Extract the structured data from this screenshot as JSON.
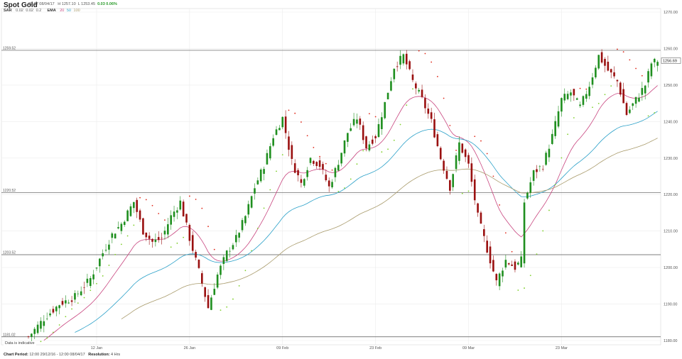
{
  "header": {
    "instrument": "Spot Gold",
    "time": "08:37 08/04/17",
    "high": "H 1257.10",
    "low": "L 1253.45",
    "change": "0.03 0.06%"
  },
  "indicators": [
    {
      "name": "SAR",
      "params": [
        "0.02",
        "0.02",
        "0.2"
      ],
      "colors": [
        "#e0291a",
        "#7fcf2a"
      ]
    },
    {
      "name": "EMA",
      "params": [
        "20",
        "50",
        "100"
      ],
      "colors": [
        "#c8457f",
        "#2aa0c8",
        "#a89a6a"
      ]
    }
  ],
  "colors": {
    "up": "#1f8f1f",
    "down": "#9a1010",
    "sar_up": "#7fcf2a",
    "sar_down": "#e0291a",
    "ema20": "#c8457f",
    "ema50": "#2aa0c8",
    "ema100": "#a89a6a",
    "grid": "#ececec",
    "hline": "#555555"
  },
  "chart_data": {
    "type": "candlestick",
    "ylim": [
      1180,
      1270
    ],
    "y_ticks": [
      "1270.00",
      "1260.00",
      "1250.00",
      "1240.00",
      "1230.00",
      "1220.00",
      "1210.00",
      "1200.00",
      "1190.00",
      "1180.00"
    ],
    "x_ticks": [
      {
        "label": "12 Jan",
        "index": 22
      },
      {
        "label": "26 Jan",
        "index": 52
      },
      {
        "label": "09 Feb",
        "index": 82
      },
      {
        "label": "23 Feb",
        "index": 112
      },
      {
        "label": "09 Mar",
        "index": 142
      },
      {
        "label": "23 Mar",
        "index": 172
      }
    ],
    "horizontal_lines": [
      {
        "label": "1259.52",
        "value": 1259.52
      },
      {
        "label": "1220.52",
        "value": 1220.52
      },
      {
        "label": "1203.52",
        "value": 1203.52
      },
      {
        "label": "1181.02",
        "value": 1181.02
      }
    ],
    "last_price": "1256.69",
    "close_path": [
      [
        0,
        1181
      ],
      [
        5,
        1186
      ],
      [
        10,
        1190
      ],
      [
        15,
        1192
      ],
      [
        20,
        1197
      ],
      [
        24,
        1204
      ],
      [
        27,
        1209
      ],
      [
        30,
        1212
      ],
      [
        34,
        1218
      ],
      [
        37,
        1210
      ],
      [
        40,
        1207
      ],
      [
        43,
        1208
      ],
      [
        46,
        1214
      ],
      [
        49,
        1218
      ],
      [
        52,
        1208
      ],
      [
        55,
        1199
      ],
      [
        58,
        1189
      ],
      [
        61,
        1198
      ],
      [
        64,
        1204
      ],
      [
        67,
        1208
      ],
      [
        70,
        1214
      ],
      [
        73,
        1222
      ],
      [
        76,
        1228
      ],
      [
        79,
        1236
      ],
      [
        82,
        1241
      ],
      [
        85,
        1229
      ],
      [
        88,
        1223
      ],
      [
        91,
        1230
      ],
      [
        94,
        1228
      ],
      [
        97,
        1222
      ],
      [
        100,
        1229
      ],
      [
        103,
        1237
      ],
      [
        106,
        1241
      ],
      [
        109,
        1233
      ],
      [
        112,
        1236
      ],
      [
        115,
        1245
      ],
      [
        118,
        1255
      ],
      [
        121,
        1258
      ],
      [
        124,
        1251
      ],
      [
        127,
        1246
      ],
      [
        130,
        1240
      ],
      [
        133,
        1230
      ],
      [
        136,
        1222
      ],
      [
        139,
        1234
      ],
      [
        142,
        1228
      ],
      [
        145,
        1214
      ],
      [
        148,
        1205
      ],
      [
        151,
        1196
      ],
      [
        154,
        1202
      ],
      [
        157,
        1200
      ],
      [
        159,
        1202
      ],
      [
        160,
        1218
      ],
      [
        163,
        1226
      ],
      [
        166,
        1228
      ],
      [
        169,
        1236
      ],
      [
        172,
        1246
      ],
      [
        175,
        1248
      ],
      [
        178,
        1244
      ],
      [
        181,
        1250
      ],
      [
        184,
        1258
      ],
      [
        187,
        1254
      ],
      [
        190,
        1251
      ],
      [
        193,
        1242
      ],
      [
        196,
        1246
      ],
      [
        199,
        1250
      ],
      [
        201,
        1256
      ],
      [
        203,
        1256.69
      ]
    ],
    "bar_count": 204
  },
  "footer": {
    "chart_period_label": "Chart Period:",
    "chart_period": "12:00 29/12/16 - 12:00 08/04/17",
    "resolution_label": "Resolution:",
    "resolution": "4 Hrs",
    "note": "Data is indicative"
  }
}
